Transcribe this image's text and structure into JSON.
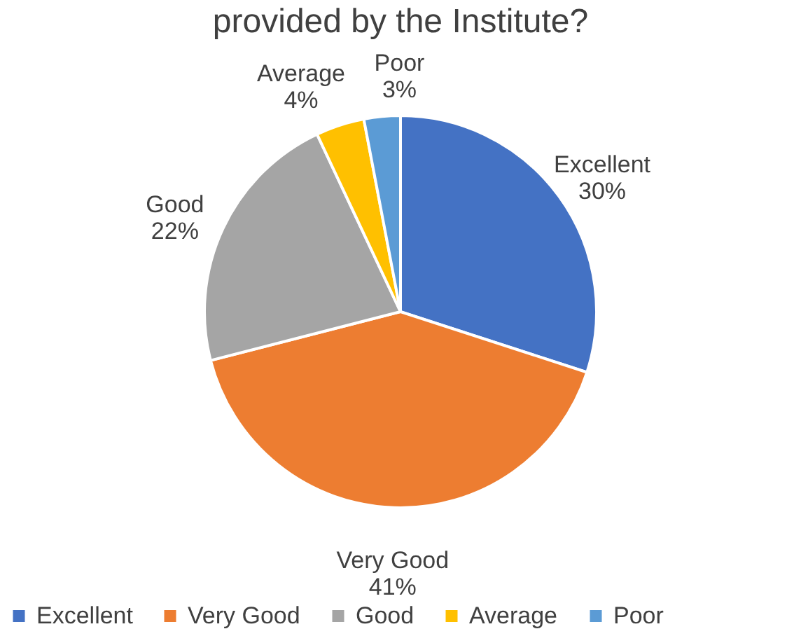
{
  "chart_data": {
    "type": "pie",
    "title": "provided by the Institute?",
    "categories": [
      "Excellent",
      "Very Good",
      "Good",
      "Average",
      "Poor"
    ],
    "values": [
      30,
      41,
      22,
      4,
      3
    ],
    "value_labels": [
      "30%",
      "41%",
      "22%",
      "4%",
      "3%"
    ],
    "colors": [
      "#4472c4",
      "#ed7d31",
      "#a5a5a5",
      "#ffc000",
      "#5b9bd5"
    ],
    "legend": "bottom"
  }
}
